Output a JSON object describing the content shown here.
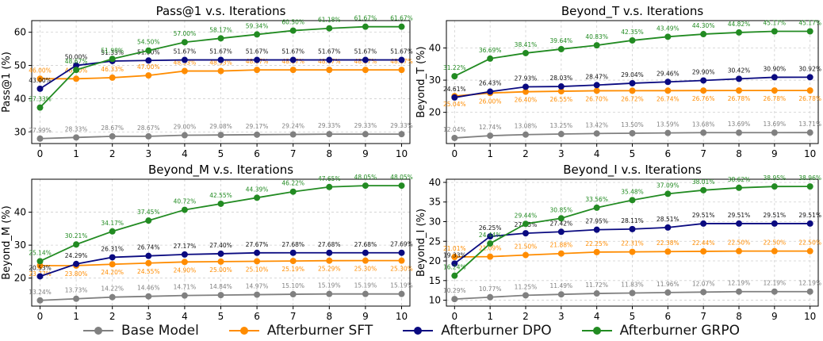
{
  "chart_data": [
    {
      "type": "line",
      "title": "Pass@1 v.s. Iterations",
      "xlabel": "",
      "ylabel": "Pass@1 (%)",
      "x": [
        0,
        1,
        2,
        3,
        4,
        5,
        6,
        7,
        8,
        9,
        10
      ],
      "ylim": [
        26.5,
        63.5
      ],
      "yticks": [
        30,
        40,
        50,
        60
      ],
      "grid": true,
      "series": [
        {
          "name": "Base Model",
          "color": "#808080",
          "values": [
            27.99,
            28.33,
            28.67,
            28.67,
            29.0,
            29.08,
            29.17,
            29.24,
            29.33,
            29.33,
            29.33
          ],
          "labels": [
            "27.99%",
            "28.33%",
            "28.67%",
            "28.67%",
            "29.00%",
            "29.08%",
            "29.17%",
            "29.24%",
            "29.33%",
            "29.33%",
            "29.33%"
          ]
        },
        {
          "name": "Afterburner SFT",
          "color": "#ff8c00",
          "values": [
            46.0,
            46.0,
            46.33,
            47.0,
            48.33,
            48.33,
            48.67,
            48.67,
            48.67,
            48.67,
            48.67
          ],
          "labels": [
            "46.00%",
            "46.00%",
            "46.33%",
            "47.00%",
            "48.33%",
            "48.33%",
            "48.67%",
            "48.67%",
            "48.67%",
            "48.67%",
            "48.67%"
          ]
        },
        {
          "name": "Afterburner DPO",
          "color": "#0a0a80",
          "values": [
            43.0,
            50.0,
            51.33,
            51.5,
            51.67,
            51.67,
            51.67,
            51.67,
            51.67,
            51.67,
            51.67
          ],
          "labels": [
            "43.00%",
            "50.00%",
            "51.33%",
            "51.50%",
            "51.67%",
            "51.67%",
            "51.67%",
            "51.67%",
            "51.67%",
            "51.67%",
            "51.67%"
          ]
        },
        {
          "name": "Afterburner GRPO",
          "color": "#228b22",
          "values": [
            37.33,
            48.67,
            51.98,
            54.5,
            57.0,
            58.17,
            59.34,
            60.5,
            61.18,
            61.67,
            61.67
          ],
          "labels": [
            "37.33%",
            "48.67%",
            "51.98%",
            "54.50%",
            "57.00%",
            "58.17%",
            "59.34%",
            "60.50%",
            "61.18%",
            "61.67%",
            "61.67%"
          ]
        }
      ]
    },
    {
      "type": "line",
      "title": "Beyond_T v.s. Iterations",
      "xlabel": "",
      "ylabel": "Beyond_T (%)",
      "x": [
        0,
        1,
        2,
        3,
        4,
        5,
        6,
        7,
        8,
        9,
        10
      ],
      "ylim": [
        10.3,
        48.5
      ],
      "yticks": [
        20,
        30,
        40
      ],
      "grid": true,
      "series": [
        {
          "name": "Base Model",
          "color": "#808080",
          "values": [
            12.04,
            12.74,
            13.08,
            13.25,
            13.42,
            13.5,
            13.59,
            13.68,
            13.69,
            13.69,
            13.71
          ],
          "labels": [
            "12.04%",
            "12.74%",
            "13.08%",
            "13.25%",
            "13.42%",
            "13.50%",
            "13.59%",
            "13.68%",
            "13.69%",
            "13.69%",
            "13.71%"
          ]
        },
        {
          "name": "Afterburner SFT",
          "color": "#ff8c00",
          "values": [
            25.04,
            26.0,
            26.4,
            26.55,
            26.7,
            26.72,
            26.74,
            26.76,
            26.78,
            26.78,
            26.78
          ],
          "labels": [
            "25.04%",
            "26.00%",
            "26.40%",
            "26.55%",
            "26.70%",
            "26.72%",
            "26.74%",
            "26.76%",
            "26.78%",
            "26.78%",
            "26.78%"
          ]
        },
        {
          "name": "Afterburner DPO",
          "color": "#0a0a80",
          "values": [
            24.61,
            26.43,
            27.93,
            28.03,
            28.47,
            29.04,
            29.46,
            29.9,
            30.42,
            30.9,
            30.92
          ],
          "labels": [
            "24.61%",
            "26.43%",
            "27.93%",
            "28.03%",
            "28.47%",
            "29.04%",
            "29.46%",
            "29.90%",
            "30.42%",
            "30.90%",
            "30.92%"
          ]
        },
        {
          "name": "Afterburner GRPO",
          "color": "#228b22",
          "values": [
            31.22,
            36.69,
            38.41,
            39.64,
            40.83,
            42.35,
            43.49,
            44.3,
            44.82,
            45.17,
            45.17
          ],
          "labels": [
            "31.22%",
            "36.69%",
            "38.41%",
            "39.64%",
            "40.83%",
            "42.35%",
            "43.49%",
            "44.30%",
            "44.82%",
            "45.17%",
            "45.17%"
          ]
        }
      ]
    },
    {
      "type": "line",
      "title": "Beyond_M v.s. Iterations",
      "xlabel": "",
      "ylabel": "Beyond_M (%)",
      "x": [
        0,
        1,
        2,
        3,
        4,
        5,
        6,
        7,
        8,
        9,
        10
      ],
      "ylim": [
        11.5,
        50.0
      ],
      "yticks": [
        20,
        30,
        40
      ],
      "grid": true,
      "series": [
        {
          "name": "Base Model",
          "color": "#808080",
          "values": [
            13.24,
            13.73,
            14.22,
            14.46,
            14.71,
            14.84,
            14.97,
            15.1,
            15.19,
            15.19,
            15.19
          ],
          "labels": [
            "13.24%",
            "13.73%",
            "14.22%",
            "14.46%",
            "14.71%",
            "14.84%",
            "14.97%",
            "15.10%",
            "15.19%",
            "15.19%",
            "15.19%"
          ]
        },
        {
          "name": "Afterburner SFT",
          "color": "#ff8c00",
          "values": [
            23.77,
            23.8,
            24.2,
            24.55,
            24.9,
            25.0,
            25.1,
            25.19,
            25.29,
            25.3,
            25.3
          ],
          "labels": [
            "23.77%",
            "23.80%",
            "24.20%",
            "24.55%",
            "24.90%",
            "25.00%",
            "25.10%",
            "25.19%",
            "25.29%",
            "25.30%",
            "25.30%"
          ]
        },
        {
          "name": "Afterburner DPO",
          "color": "#0a0a80",
          "values": [
            20.53,
            24.29,
            26.31,
            26.74,
            27.17,
            27.4,
            27.67,
            27.68,
            27.68,
            27.68,
            27.69
          ],
          "labels": [
            "20.53%",
            "24.29%",
            "26.31%",
            "26.74%",
            "27.17%",
            "27.40%",
            "27.67%",
            "27.68%",
            "27.68%",
            "27.68%",
            "27.69%"
          ]
        },
        {
          "name": "Afterburner GRPO",
          "color": "#228b22",
          "values": [
            25.14,
            30.21,
            34.17,
            37.45,
            40.72,
            42.55,
            44.39,
            46.22,
            47.65,
            48.05,
            48.05
          ],
          "labels": [
            "25.14%",
            "30.21%",
            "34.17%",
            "37.45%",
            "40.72%",
            "42.55%",
            "44.39%",
            "46.22%",
            "47.65%",
            "48.05%",
            "48.05%"
          ]
        }
      ]
    },
    {
      "type": "line",
      "title": "Beyond_I v.s. Iterations",
      "xlabel": "",
      "ylabel": "Beyond_I (%)",
      "x": [
        0,
        1,
        2,
        3,
        4,
        5,
        6,
        7,
        8,
        9,
        10
      ],
      "ylim": [
        8.5,
        40.8
      ],
      "yticks": [
        10,
        15,
        20,
        25,
        30,
        35,
        40
      ],
      "grid": true,
      "series": [
        {
          "name": "Base Model",
          "color": "#808080",
          "values": [
            10.29,
            10.77,
            11.25,
            11.49,
            11.72,
            11.83,
            11.96,
            12.07,
            12.19,
            12.19,
            12.19
          ],
          "labels": [
            "10.29%",
            "10.77%",
            "11.25%",
            "11.49%",
            "11.72%",
            "11.83%",
            "11.96%",
            "12.07%",
            "12.19%",
            "12.19%",
            "12.19%"
          ]
        },
        {
          "name": "Afterburner SFT",
          "color": "#ff8c00",
          "values": [
            21.01,
            21.09,
            21.5,
            21.88,
            22.25,
            22.31,
            22.38,
            22.44,
            22.5,
            22.5,
            22.5
          ],
          "labels": [
            "21.01%",
            "21.09%",
            "21.50%",
            "21.88%",
            "22.25%",
            "22.31%",
            "22.38%",
            "22.44%",
            "22.50%",
            "22.50%",
            "22.50%"
          ]
        },
        {
          "name": "Afterburner DPO",
          "color": "#0a0a80",
          "values": [
            19.33,
            26.25,
            27.05,
            27.42,
            27.95,
            28.11,
            28.51,
            29.51,
            29.51,
            29.51,
            29.51
          ],
          "labels": [
            "19.33%",
            "26.25%",
            "27.05%",
            "27.42%",
            "27.95%",
            "28.11%",
            "28.51%",
            "29.51%",
            "29.51%",
            "29.51%",
            "29.51%"
          ]
        },
        {
          "name": "Afterburner GRPO",
          "color": "#228b22",
          "values": [
            16.24,
            24.44,
            29.44,
            30.85,
            33.56,
            35.48,
            37.09,
            38.01,
            38.62,
            38.95,
            38.96
          ],
          "labels": [
            "16.24%",
            "24.44%",
            "29.44%",
            "30.85%",
            "33.56%",
            "35.48%",
            "37.09%",
            "38.01%",
            "38.62%",
            "38.95%",
            "38.96%"
          ]
        }
      ]
    }
  ],
  "legend": {
    "items": [
      {
        "label": "Base Model",
        "color": "#808080"
      },
      {
        "label": "Afterburner SFT",
        "color": "#ff8c00"
      },
      {
        "label": "Afterburner DPO",
        "color": "#0a0a80"
      },
      {
        "label": "Afterburner GRPO",
        "color": "#228b22"
      }
    ]
  }
}
